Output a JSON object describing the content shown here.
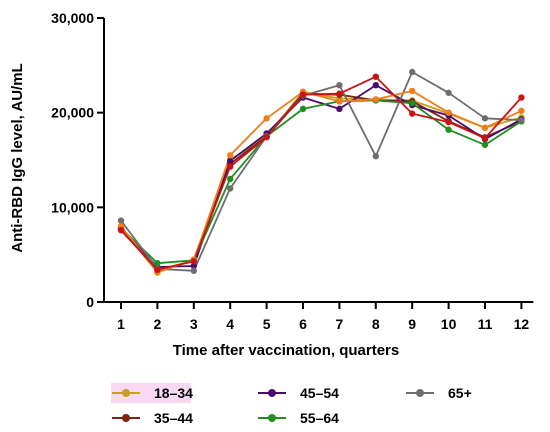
{
  "chart_data": {
    "type": "line",
    "xlabel": "Time after vaccination, quarters",
    "ylabel": "Anti-RBD IgG level, AU/mL",
    "x": [
      1,
      2,
      3,
      4,
      5,
      6,
      7,
      8,
      9,
      10,
      11,
      12
    ],
    "ylim": [
      0,
      30000
    ],
    "yticks": [
      0,
      10000,
      20000,
      30000
    ],
    "ytick_labels": [
      "0",
      "10,000",
      "20,000",
      "30,000"
    ],
    "grid": false,
    "legend_position": "bottom",
    "series": [
      {
        "name": "18–34",
        "color": "#c8a21e",
        "highlight": "#f7d9f2",
        "values": [
          7900,
          3100,
          4500,
          15000,
          17500,
          22200,
          21500,
          21400,
          21300,
          19900,
          18400,
          19500
        ]
      },
      {
        "name": "35–44",
        "color": "#7a2411",
        "highlight": "",
        "values": [
          7600,
          3400,
          4300,
          14600,
          17500,
          22000,
          21900,
          21300,
          21200,
          19100,
          17400,
          19100
        ]
      },
      {
        "name": "45–54",
        "color": "#4b0c6e",
        "highlight": "",
        "values": [
          7800,
          3700,
          3800,
          14900,
          17800,
          21600,
          20400,
          22900,
          20800,
          19700,
          17200,
          19300
        ]
      },
      {
        "name": "55–64",
        "color": "#1f8f1f",
        "highlight": "",
        "values": [
          7800,
          4100,
          4400,
          13000,
          17500,
          20400,
          21200,
          21300,
          21000,
          18200,
          16600,
          19100
        ]
      },
      {
        "name": "65+",
        "color": "#6e6e6e",
        "highlight": "",
        "values": [
          8600,
          3500,
          3300,
          12000,
          17500,
          21800,
          22900,
          15400,
          24300,
          22100,
          19400,
          19200
        ]
      },
      {
        "name": "",
        "color": "#f07d1a",
        "highlight": "",
        "values": [
          8000,
          3200,
          4400,
          15500,
          19400,
          22200,
          21200,
          21400,
          22300,
          20000,
          18400,
          20200
        ]
      },
      {
        "name": "",
        "color": "#c81414",
        "highlight": "",
        "values": [
          7600,
          3400,
          4300,
          14300,
          17400,
          21900,
          22000,
          23800,
          19900,
          19000,
          17300,
          21600
        ]
      }
    ]
  }
}
